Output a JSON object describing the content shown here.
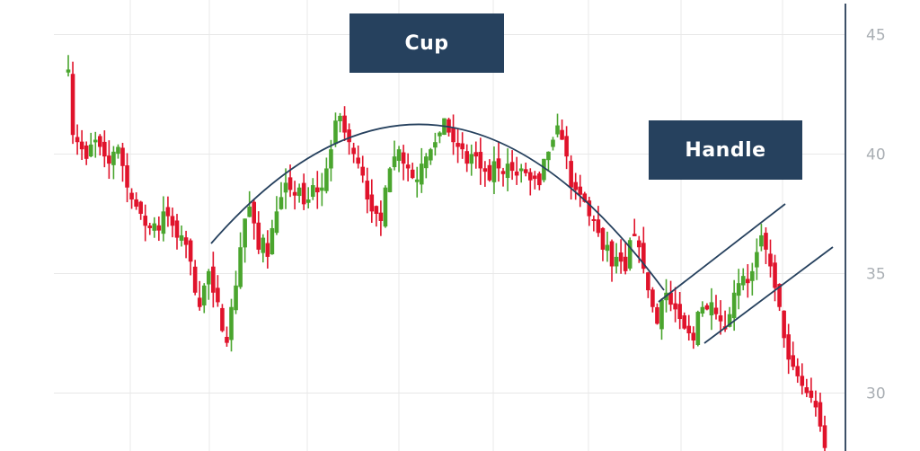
{
  "chart_data": {
    "type": "candlestick",
    "title": "",
    "xlabel": "",
    "ylabel": "",
    "ylim": [
      27.5,
      46.5
    ],
    "yticks": [
      30,
      35,
      40,
      45
    ],
    "ytick_position": "right",
    "grid": true,
    "colors": {
      "up": "#4aa52e",
      "down": "#e0132b",
      "annotation": "#26415e",
      "grid": "#e8e8e8",
      "axis": "#3d5068"
    },
    "annotations": [
      {
        "label": "Cup",
        "kind": "arc"
      },
      {
        "label": "Handle",
        "kind": "channel"
      }
    ],
    "closes": [
      43.5,
      40.8,
      40.5,
      40.2,
      39.8,
      40.4,
      40.6,
      40.3,
      39.9,
      39.6,
      40.1,
      40.3,
      39.5,
      38.6,
      38.1,
      37.8,
      37.5,
      37.0,
      36.9,
      37.1,
      36.8,
      37.6,
      37.4,
      37.0,
      36.5,
      36.6,
      36.2,
      35.5,
      34.2,
      33.6,
      34.5,
      35.1,
      34.2,
      33.8,
      32.6,
      32.1,
      33.6,
      34.5,
      36.1,
      37.3,
      37.8,
      37.1,
      36.0,
      36.5,
      35.7,
      36.9,
      37.6,
      38.2,
      38.8,
      38.5,
      38.3,
      38.6,
      37.9,
      38.1,
      38.7,
      38.4,
      38.6,
      39.4,
      40.2,
      41.4,
      41.6,
      40.9,
      40.5,
      40.0,
      39.6,
      39.1,
      38.1,
      37.6,
      37.5,
      37.2,
      38.6,
      39.4,
      39.9,
      40.2,
      39.6,
      39.4,
      39.0,
      38.9,
      39.6,
      39.9,
      40.2,
      40.5,
      40.9,
      41.5,
      40.9,
      40.5,
      40.3,
      40.2,
      39.6,
      40.0,
      39.9,
      39.4,
      39.3,
      38.9,
      39.7,
      39.4,
      39.2,
      39.6,
      39.3,
      39.1,
      39.4,
      39.2,
      38.9,
      39.0,
      38.7,
      39.8,
      40.1,
      40.6,
      41.2,
      40.6,
      39.9,
      38.6,
      38.5,
      38.3,
      38.0,
      37.4,
      37.2,
      36.7,
      36.0,
      36.2,
      35.3,
      35.7,
      35.5,
      35.1,
      36.4,
      36.6,
      36.1,
      35.2,
      34.3,
      33.6,
      32.9,
      33.9,
      34.2,
      33.7,
      33.5,
      33.1,
      32.7,
      32.5,
      32.2,
      33.4,
      33.6,
      33.5,
      33.8,
      33.3,
      33.0,
      32.7,
      33.3,
      34.2,
      34.6,
      34.9,
      34.6,
      35.1,
      35.9,
      36.6,
      36.0,
      35.3,
      34.4,
      33.6,
      32.3,
      31.4,
      31.1,
      30.7,
      30.3,
      30.0,
      29.8,
      29.4,
      28.6,
      27.7
    ],
    "annotations_note": ""
  }
}
